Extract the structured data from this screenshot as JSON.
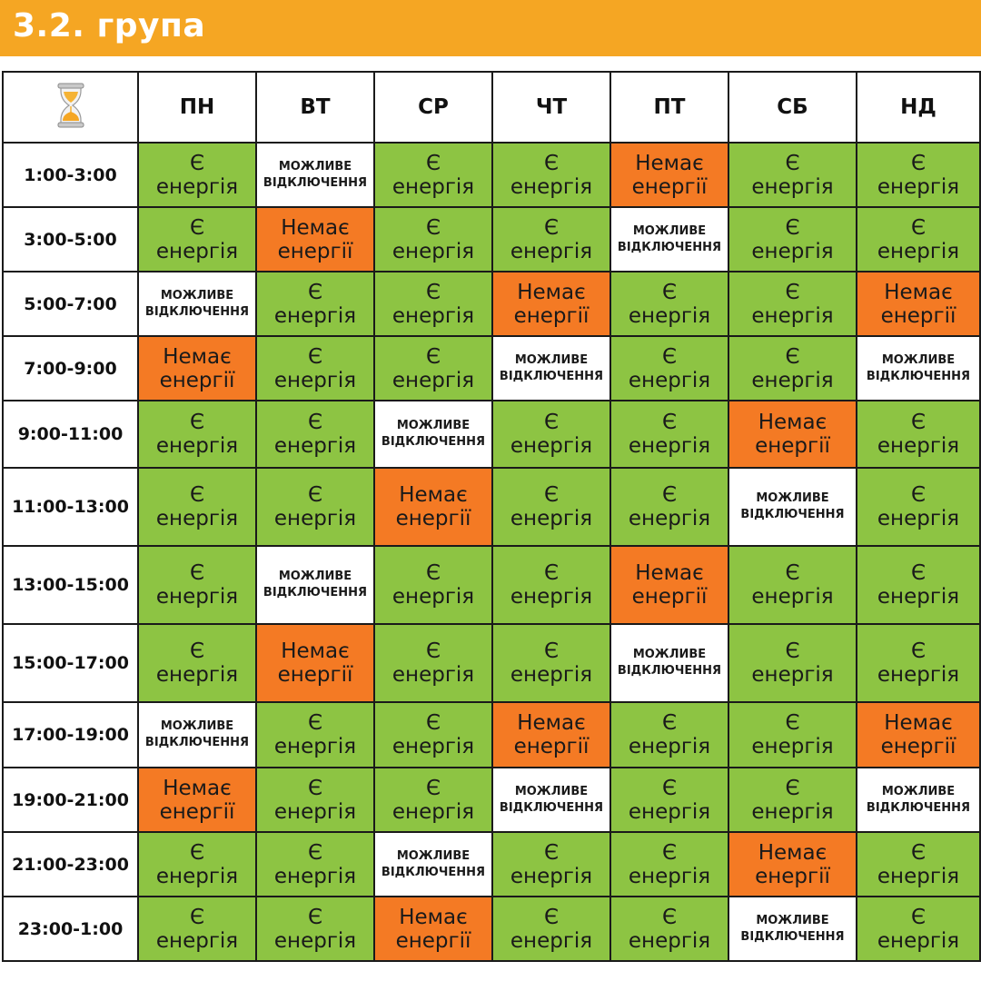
{
  "title": "3.2. група",
  "colors": {
    "banner": "#f5a623",
    "yes": "#8dc443",
    "no": "#f47a24",
    "maybe": "#ffffff"
  },
  "corner_icon": "hourglass-icon",
  "statuses": {
    "yes": [
      "Є",
      "енергія"
    ],
    "no": [
      "Немає",
      "енергії"
    ],
    "maybe": [
      "МОЖЛИВЕ",
      "ВІДКЛЮЧЕННЯ"
    ]
  },
  "days": [
    "ПН",
    "ВТ",
    "СР",
    "ЧТ",
    "ПТ",
    "СБ",
    "НД"
  ],
  "rows": [
    {
      "time": "1:00-3:00",
      "cells": [
        "yes",
        "maybe",
        "yes",
        "yes",
        "no",
        "yes",
        "yes"
      ]
    },
    {
      "time": "3:00-5:00",
      "cells": [
        "yes",
        "no",
        "yes",
        "yes",
        "maybe",
        "yes",
        "yes"
      ]
    },
    {
      "time": "5:00-7:00",
      "cells": [
        "maybe",
        "yes",
        "yes",
        "no",
        "yes",
        "yes",
        "no"
      ]
    },
    {
      "time": "7:00-9:00",
      "cells": [
        "no",
        "yes",
        "yes",
        "maybe",
        "yes",
        "yes",
        "maybe"
      ]
    },
    {
      "time": "9:00-11:00",
      "cells": [
        "yes",
        "yes",
        "maybe",
        "yes",
        "yes",
        "no",
        "yes"
      ]
    },
    {
      "time": "11:00-13:00",
      "cells": [
        "yes",
        "yes",
        "no",
        "yes",
        "yes",
        "maybe",
        "yes"
      ]
    },
    {
      "time": "13:00-15:00",
      "cells": [
        "yes",
        "maybe",
        "yes",
        "yes",
        "no",
        "yes",
        "yes"
      ]
    },
    {
      "time": "15:00-17:00",
      "cells": [
        "yes",
        "no",
        "yes",
        "yes",
        "maybe",
        "yes",
        "yes"
      ]
    },
    {
      "time": "17:00-19:00",
      "cells": [
        "maybe",
        "yes",
        "yes",
        "no",
        "yes",
        "yes",
        "no"
      ]
    },
    {
      "time": "19:00-21:00",
      "cells": [
        "no",
        "yes",
        "yes",
        "maybe",
        "yes",
        "yes",
        "maybe"
      ]
    },
    {
      "time": "21:00-23:00",
      "cells": [
        "yes",
        "yes",
        "maybe",
        "yes",
        "yes",
        "no",
        "yes"
      ]
    },
    {
      "time": "23:00-1:00",
      "cells": [
        "yes",
        "yes",
        "no",
        "yes",
        "yes",
        "maybe",
        "yes"
      ]
    }
  ]
}
